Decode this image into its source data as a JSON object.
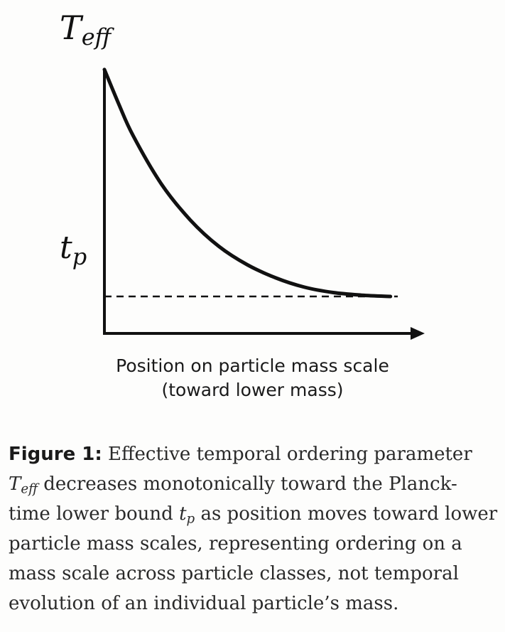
{
  "chart_data": {
    "type": "line",
    "series": [
      {
        "x": [
          0,
          0.05,
          0.1,
          0.2,
          0.3,
          0.4,
          0.5,
          0.6,
          0.7,
          0.8,
          0.9,
          1.0
        ],
        "y": [
          1.0,
          0.87,
          0.75,
          0.565,
          0.43,
          0.33,
          0.26,
          0.21,
          0.175,
          0.155,
          0.145,
          0.14
        ]
      }
    ],
    "xlim": [
      0,
      1.12
    ],
    "ylim": [
      0,
      1.25
    ],
    "reference_lines": [
      {
        "y": 0.14,
        "style": "dashed",
        "label": "t",
        "label_sub": "p"
      }
    ],
    "y_symbol": "T",
    "y_symbol_sub": "eff",
    "xlabel_line1": "Position on particle mass scale",
    "xlabel_line2": "(toward lower mass)",
    "grid": false,
    "line_color": "#111111"
  },
  "caption": {
    "label": "Figure 1:",
    "part1": " Effective temporal ordering parameter ",
    "sym1": "T",
    "sym1_sub": "eff",
    "part2": " decreases monotonically toward the Planck-time lower bound ",
    "sym2": "t",
    "sym2_sub": "p",
    "part3": " as position moves toward lower particle mass scales, representing ordering on a mass scale across particle classes, not temporal evolution of an individual particle’s mass."
  }
}
